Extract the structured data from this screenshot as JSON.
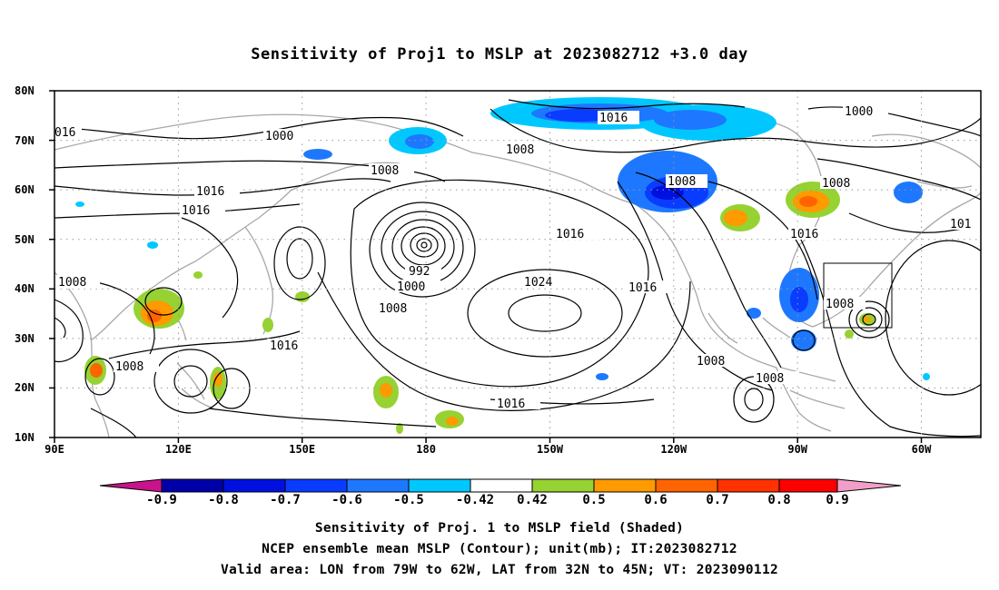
{
  "title": "Sensitivity of Proj1 to MSLP at 2023082712 +3.0 day",
  "map": {
    "lat_labels": [
      "80N",
      "70N",
      "60N",
      "50N",
      "40N",
      "30N",
      "20N",
      "10N"
    ],
    "lon_labels": [
      "90E",
      "120E",
      "150E",
      "180",
      "150W",
      "120W",
      "90W",
      "60W"
    ],
    "contour_labels": [
      "016",
      "1000",
      "1008",
      "1016",
      "1016",
      "1008",
      "992",
      "1000",
      "1008",
      "1008",
      "1016",
      "1024",
      "1016",
      "1016",
      "1016",
      "1008",
      "1016",
      "1008",
      "1008",
      "1000",
      "1008",
      "1016",
      "101",
      "1008",
      "1016",
      "1008"
    ],
    "valid_area_box": {
      "lon": [
        "79W",
        "62W"
      ],
      "lat": [
        "32N",
        "45N"
      ]
    }
  },
  "colorbar": {
    "labels": [
      "-0.9",
      "-0.8",
      "-0.7",
      "-0.6",
      "-0.5",
      "-0.42",
      "0.42",
      "0.5",
      "0.6",
      "0.7",
      "0.8",
      "0.9"
    ],
    "colors": {
      "lt_-0.9": "#c8138c",
      "-0.9_-0.8": "#0000a8",
      "-0.8_-0.7": "#0010e0",
      "-0.7_-0.6": "#0a3cff",
      "-0.6_-0.5": "#1e78ff",
      "-0.5_-0.42": "#00c8ff",
      "-0.42_0.42": "#ffffff",
      "0.42_0.5": "#96d232",
      "0.5_0.6": "#ff9a00",
      "0.6_0.7": "#ff6400",
      "0.7_0.8": "#ff3200",
      "0.8_0.9": "#ff0000",
      "gt_0.9": "#f0a0c8"
    }
  },
  "captions": [
    "Sensitivity of Proj. 1 to MSLP field (Shaded)",
    "NCEP ensemble mean MSLP (Contour); unit(mb); IT:2023082712",
    "Valid area: LON from 79W to 62W, LAT from 32N to 45N; VT: 2023090112"
  ]
}
